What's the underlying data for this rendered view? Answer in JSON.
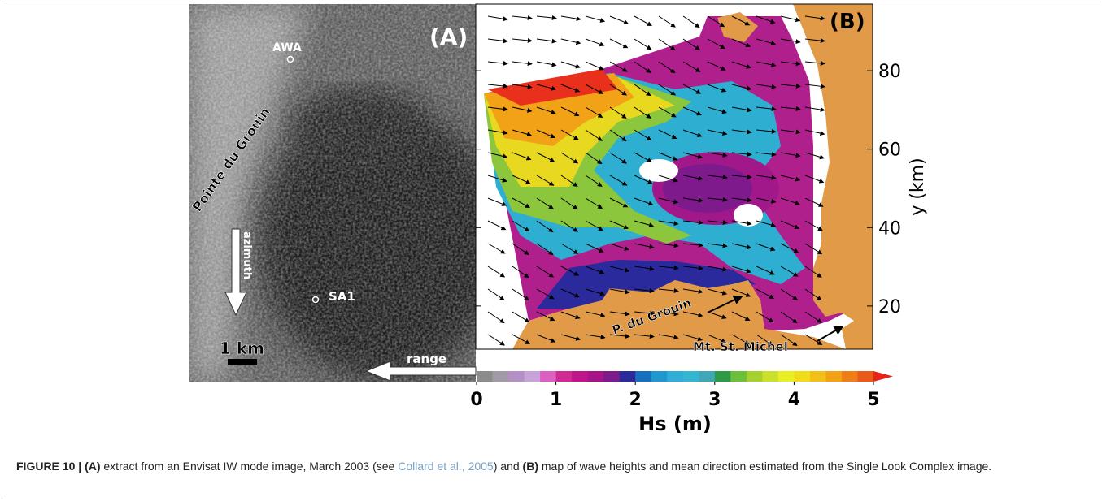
{
  "figure": {
    "panel_a": {
      "label": "(A)",
      "station_1": "AWA",
      "station_2": "SA1",
      "place": "Pointe du Grouin",
      "azimuth": "azimuth",
      "range": "range",
      "scale": "1 km"
    },
    "panel_b": {
      "label": "(B)",
      "place_1": "P. du Grouin",
      "place_2": "Mt. St. Michel",
      "y_label": "y (km)",
      "ylim": [
        9,
        97
      ],
      "yticks": [
        20,
        40,
        60,
        80
      ],
      "colorbar": {
        "label": "Hs (m)",
        "lim": [
          0,
          5
        ],
        "ticks": [
          0,
          1,
          2,
          3,
          4,
          5
        ],
        "colors": [
          "#8c8c8c",
          "#a29aa6",
          "#b590c6",
          "#c7a2db",
          "#dd5fc2",
          "#d12a92",
          "#c0168a",
          "#a81488",
          "#7e1a8c",
          "#2a2a9c",
          "#1670c0",
          "#1f98cf",
          "#2eaed8",
          "#33b6d2",
          "#3ea8b8",
          "#2e9a45",
          "#6cbf3a",
          "#a4d12e",
          "#cbe02c",
          "#e9ee24",
          "#f1dc1c",
          "#f2c016",
          "#f2a214",
          "#f07e14",
          "#ec5a18"
        ],
        "over_color": "#e8231a"
      }
    },
    "caption": {
      "figure_label": "FIGURE 10 |",
      "part_a": "(A)",
      "text_1": " extract from an Envisat IW mode image, March 2003 (see ",
      "reference": "Collard et al., 2005",
      "text_2": ") and ",
      "part_b": "(B)",
      "text_3": " map of wave heights and mean direction estimated from the Single Look Complex image."
    }
  }
}
